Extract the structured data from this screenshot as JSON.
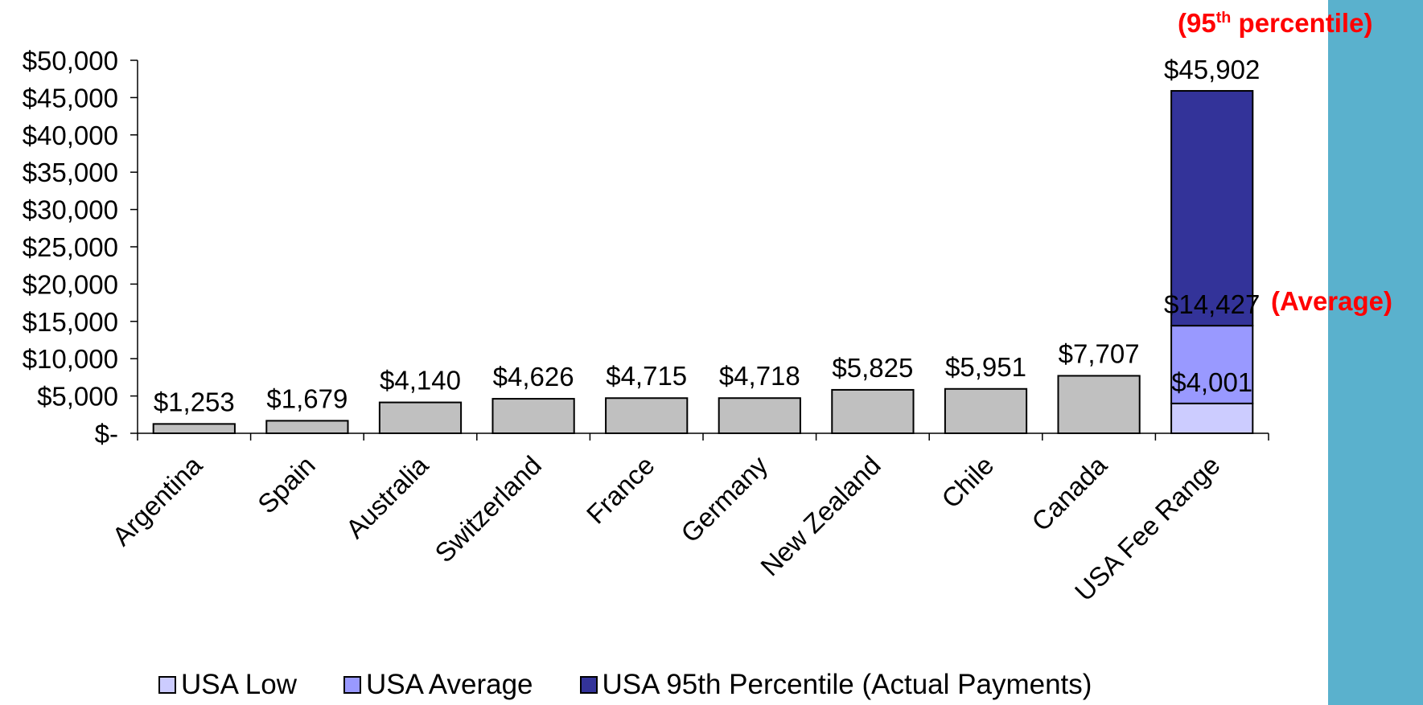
{
  "chart_data": {
    "type": "bar",
    "stacked_last_category": true,
    "title": "",
    "xlabel": "",
    "ylabel": "",
    "ylim": [
      0,
      50000
    ],
    "yticks": [
      0,
      5000,
      10000,
      15000,
      20000,
      25000,
      30000,
      35000,
      40000,
      45000,
      50000
    ],
    "ytick_labels": [
      "$-",
      "$5,000",
      "$10,000",
      "$15,000",
      "$20,000",
      "$25,000",
      "$30,000",
      "$35,000",
      "$40,000",
      "$45,000",
      "$50,000"
    ],
    "categories": [
      "Argentina",
      "Spain",
      "Australia",
      "Switzerland",
      "France",
      "Germany",
      "New Zealand",
      "Chile",
      "Canada",
      "USA Fee Range"
    ],
    "values": [
      1253,
      1679,
      4140,
      4626,
      4715,
      4718,
      5825,
      5951,
      7707,
      null
    ],
    "value_labels": [
      "$1,253",
      "$1,679",
      "$4,140",
      "$4,626",
      "$4,715",
      "$4,718",
      "$5,825",
      "$5,951",
      "$7,707",
      null
    ],
    "bar_color": "#c0c0c0",
    "usa_series": [
      {
        "name": "USA Low",
        "value": 4001,
        "label": "$4,001",
        "color": "#ccccff"
      },
      {
        "name": "USA Average",
        "value": 14427,
        "label": "$14,427",
        "color": "#9999ff"
      },
      {
        "name": "USA 95th Percentile (Actual Payments)",
        "value": 45902,
        "label": "$45,902",
        "color": "#333399"
      }
    ],
    "annotations": {
      "percentile_prefix": "(95",
      "percentile_sup": "th",
      "percentile_suffix": " percentile)",
      "average": "(Average)",
      "color": "#ff0000"
    },
    "legend_position": "bottom",
    "grid": false
  },
  "side_panel_color": "#5ab1cd"
}
